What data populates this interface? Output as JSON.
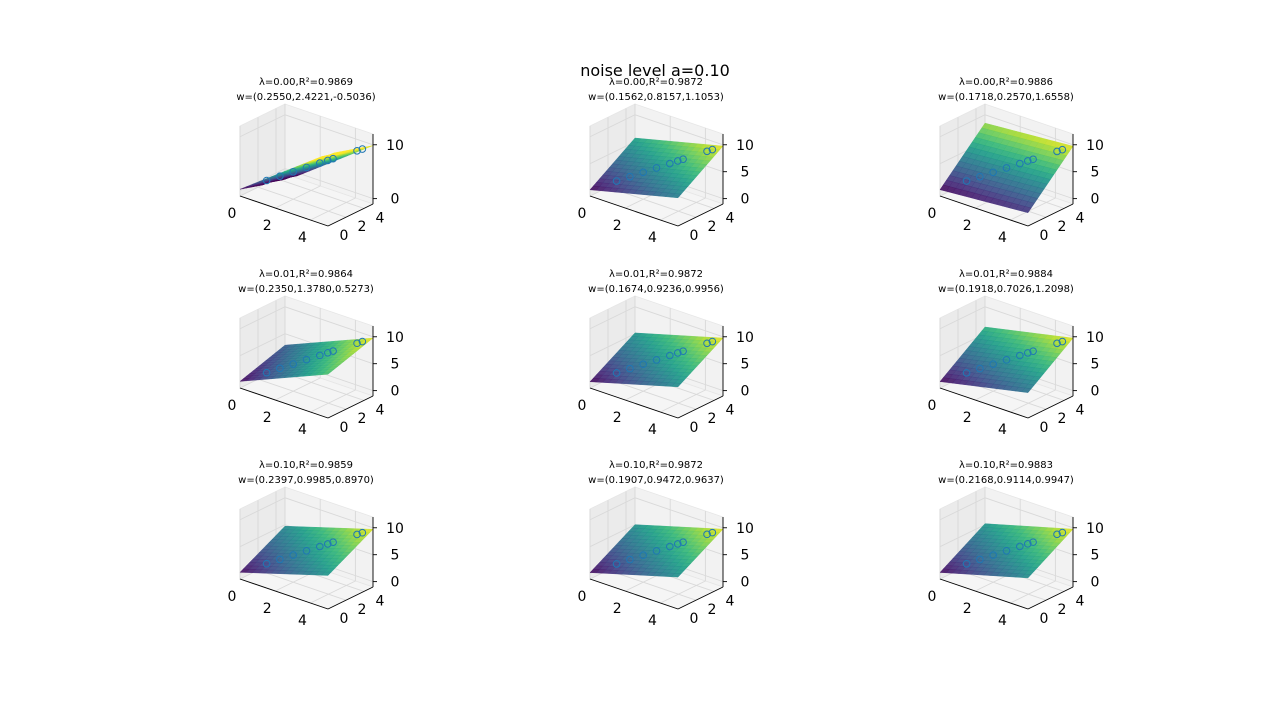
{
  "figure": {
    "suptitle": "noise level a=0.10"
  },
  "chart_data": {
    "type": "surface3d",
    "rows_lambda": [
      "0.00",
      "0.01",
      "0.10"
    ],
    "xticks": [
      "0",
      "2",
      "4"
    ],
    "yticks": [
      "0",
      "2",
      "4"
    ],
    "zticks_default": [
      "0",
      "5",
      "10"
    ],
    "surface_colormap": "viridis",
    "marker_color": "#1f77b4",
    "subplots": [
      {
        "lambda": "0.00",
        "r2": "0.9869",
        "w": "(0.2550,2.4221,-0.5036)",
        "zticks": [
          "0",
          "10"
        ],
        "title1": "λ=0.00,R²=0.9869",
        "title2": "w=(0.2550,2.4221,-0.5036)",
        "coef": [
          0.255,
          2.4221,
          -0.5036
        ]
      },
      {
        "lambda": "0.00",
        "r2": "0.9872",
        "w": "(0.1562,0.8157,1.1053)",
        "zticks": [
          "0",
          "5",
          "10"
        ],
        "title1": "λ=0.00,R²=0.9872",
        "title2": "w=(0.1562,0.8157,1.1053)",
        "coef": [
          0.1562,
          0.8157,
          1.1053
        ]
      },
      {
        "lambda": "0.00",
        "r2": "0.9886",
        "w": "(0.1718,0.2570,1.6558)",
        "zticks": [
          "0",
          "5",
          "10"
        ],
        "title1": "λ=0.00,R²=0.9886",
        "title2": "w=(0.1718,0.2570,1.6558)",
        "coef": [
          0.1718,
          0.257,
          1.6558
        ]
      },
      {
        "lambda": "0.01",
        "r2": "0.9864",
        "w": "(0.2350,1.3780,0.5273)",
        "zticks": [
          "0",
          "5",
          "10"
        ],
        "title1": "λ=0.01,R²=0.9864",
        "title2": "w=(0.2350,1.3780,0.5273)",
        "coef": [
          0.235,
          1.378,
          0.5273
        ]
      },
      {
        "lambda": "0.01",
        "r2": "0.9872",
        "w": "(0.1674,0.9236,0.9956)",
        "zticks": [
          "0",
          "5",
          "10"
        ],
        "title1": "λ=0.01,R²=0.9872",
        "title2": "w=(0.1674,0.9236,0.9956)",
        "coef": [
          0.1674,
          0.9236,
          0.9956
        ]
      },
      {
        "lambda": "0.01",
        "r2": "0.9884",
        "w": "(0.1918,0.7026,1.2098)",
        "zticks": [
          "0",
          "5",
          "10"
        ],
        "title1": "λ=0.01,R²=0.9884",
        "title2": "w=(0.1918,0.7026,1.2098)",
        "coef": [
          0.1918,
          0.7026,
          1.2098
        ]
      },
      {
        "lambda": "0.10",
        "r2": "0.9859",
        "w": "(0.2397,0.9985,0.8970)",
        "zticks": [
          "0",
          "5",
          "10"
        ],
        "title1": "λ=0.10,R²=0.9859",
        "title2": "w=(0.2397,0.9985,0.8970)",
        "coef": [
          0.2397,
          0.9985,
          0.897
        ]
      },
      {
        "lambda": "0.10",
        "r2": "0.9872",
        "w": "(0.1907,0.9472,0.9637)",
        "zticks": [
          "0",
          "5",
          "10"
        ],
        "title1": "λ=0.10,R²=0.9872",
        "title2": "w=(0.1907,0.9472,0.9637)",
        "coef": [
          0.1907,
          0.9472,
          0.9637
        ]
      },
      {
        "lambda": "0.10",
        "r2": "0.9883",
        "w": "(0.2168,0.9114,0.9947)",
        "zticks": [
          "0",
          "5",
          "10"
        ],
        "title1": "λ=0.10,R²=0.9883",
        "title2": "w=(0.2168,0.9114,0.9947)",
        "coef": [
          0.2168,
          0.9114,
          0.9947
        ]
      }
    ],
    "points": [
      [
        1.0,
        1.0
      ],
      [
        1.5,
        1.5
      ],
      [
        2.0,
        2.0
      ],
      [
        2.5,
        2.5
      ],
      [
        3.0,
        3.0
      ],
      [
        3.3,
        3.3
      ],
      [
        3.5,
        3.5
      ],
      [
        4.4,
        4.4
      ],
      [
        4.6,
        4.6
      ]
    ]
  }
}
